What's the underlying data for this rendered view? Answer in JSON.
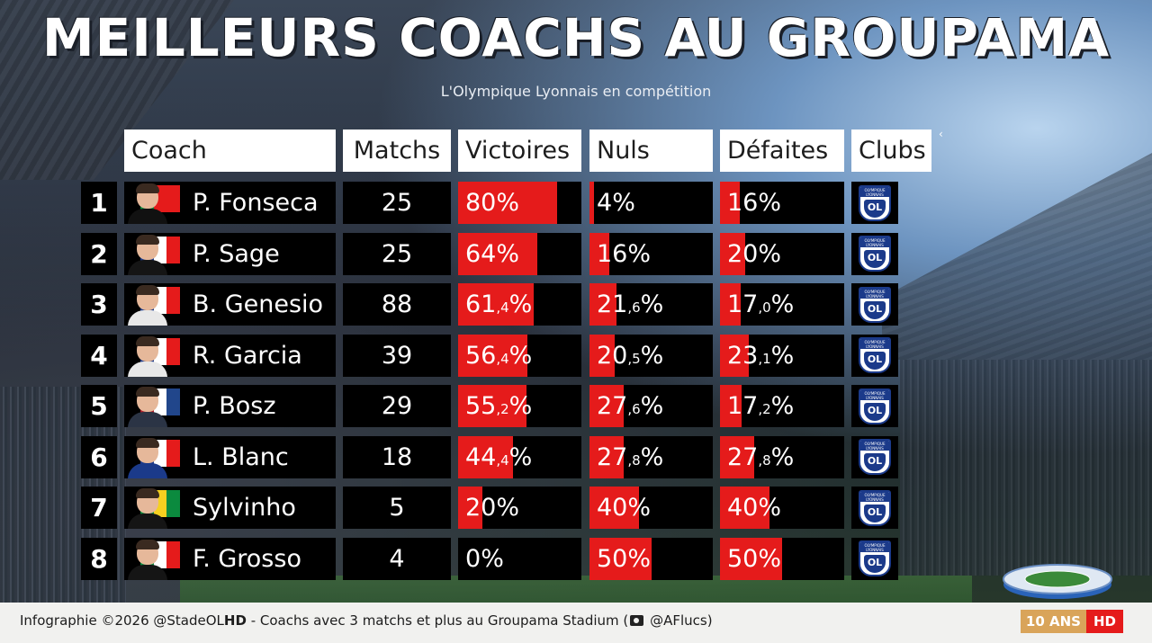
{
  "title": "MEILLEURS COACHS AU GROUPAMA",
  "subtitle": "L'Olympique Lyonnais en compétition",
  "columns": {
    "coach": "Coach",
    "matchs": "Matchs",
    "victoires": "Victoires",
    "nuls": "Nuls",
    "defaites": "Défaites",
    "clubs": "Clubs"
  },
  "header_caret": "‹",
  "rows": [
    {
      "rank": "1",
      "name": "P. Fonseca",
      "flag": [
        "#0b8a3e",
        "#e51b1b",
        "#e51b1b"
      ],
      "outfit": "#111111",
      "matchs": "25",
      "victoires": {
        "value": 80,
        "int": "80",
        "dec": "",
        "suffix": "%"
      },
      "nuls": {
        "value": 4,
        "int": "4",
        "dec": "",
        "suffix": "%"
      },
      "defaites": {
        "value": 16,
        "int": "16",
        "dec": "",
        "suffix": "%"
      },
      "club_logo": "olympique-lyonnais-logo"
    },
    {
      "rank": "2",
      "name": "P. Sage",
      "flag": [
        "#1b3a8a",
        "#ffffff",
        "#e51b1b"
      ],
      "outfit": "#151515",
      "matchs": "25",
      "victoires": {
        "value": 64,
        "int": "64",
        "dec": "",
        "suffix": "%"
      },
      "nuls": {
        "value": 16,
        "int": "16",
        "dec": "",
        "suffix": "%"
      },
      "defaites": {
        "value": 20,
        "int": "20",
        "dec": "",
        "suffix": "%"
      },
      "club_logo": "olympique-lyonnais-logo"
    },
    {
      "rank": "3",
      "name": "B. Genesio",
      "flag": [
        "#1b3a8a",
        "#ffffff",
        "#e51b1b"
      ],
      "outfit": "#e8e8e8",
      "matchs": "88",
      "victoires": {
        "value": 61.4,
        "int": "61",
        "dec": ",4",
        "suffix": "%"
      },
      "nuls": {
        "value": 21.6,
        "int": "21",
        "dec": ",6",
        "suffix": "%"
      },
      "defaites": {
        "value": 17.0,
        "int": "17",
        "dec": ",0",
        "suffix": "%"
      },
      "club_logo": "olympique-lyonnais-logo"
    },
    {
      "rank": "4",
      "name": "R. Garcia",
      "flag": [
        "#1b3a8a",
        "#ffffff",
        "#e51b1b"
      ],
      "outfit": "#e8e8e8",
      "matchs": "39",
      "victoires": {
        "value": 56.4,
        "int": "56",
        "dec": ",4",
        "suffix": "%"
      },
      "nuls": {
        "value": 20.5,
        "int": "20",
        "dec": ",5",
        "suffix": "%"
      },
      "defaites": {
        "value": 23.1,
        "int": "23",
        "dec": ",1",
        "suffix": "%"
      },
      "club_logo": "olympique-lyonnais-logo"
    },
    {
      "rank": "5",
      "name": "P. Bosz",
      "flag": [
        "#ae1c28",
        "#ffffff",
        "#21468b"
      ],
      "outfit": "#2b3445",
      "matchs": "29",
      "victoires": {
        "value": 55.2,
        "int": "55",
        "dec": ",2",
        "suffix": "%"
      },
      "nuls": {
        "value": 27.6,
        "int": "27",
        "dec": ",6",
        "suffix": "%"
      },
      "defaites": {
        "value": 17.2,
        "int": "17",
        "dec": ",2",
        "suffix": "%"
      },
      "club_logo": "olympique-lyonnais-logo"
    },
    {
      "rank": "6",
      "name": "L. Blanc",
      "flag": [
        "#1b3a8a",
        "#ffffff",
        "#e51b1b"
      ],
      "outfit": "#1b3a8a",
      "matchs": "18",
      "victoires": {
        "value": 44.4,
        "int": "44",
        "dec": ",4",
        "suffix": "%"
      },
      "nuls": {
        "value": 27.8,
        "int": "27",
        "dec": ",8",
        "suffix": "%"
      },
      "defaites": {
        "value": 27.8,
        "int": "27",
        "dec": ",8",
        "suffix": "%"
      },
      "club_logo": "olympique-lyonnais-logo"
    },
    {
      "rank": "7",
      "name": "Sylvinho",
      "flag": [
        "#0b8a3e",
        "#f5d020",
        "#0b8a3e"
      ],
      "outfit": "#151515",
      "matchs": "5",
      "victoires": {
        "value": 20,
        "int": "20",
        "dec": "",
        "suffix": "%"
      },
      "nuls": {
        "value": 40,
        "int": "40",
        "dec": "",
        "suffix": "%"
      },
      "defaites": {
        "value": 40,
        "int": "40",
        "dec": "",
        "suffix": "%"
      },
      "club_logo": "olympique-lyonnais-logo"
    },
    {
      "rank": "8",
      "name": "F. Grosso",
      "flag": [
        "#0b8a3e",
        "#ffffff",
        "#e51b1b"
      ],
      "outfit": "#151515",
      "matchs": "4",
      "victoires": {
        "value": 0,
        "int": "0",
        "dec": "",
        "suffix": "%"
      },
      "nuls": {
        "value": 50,
        "int": "50",
        "dec": "",
        "suffix": "%"
      },
      "defaites": {
        "value": 50,
        "int": "50",
        "dec": "",
        "suffix": "%"
      },
      "club_logo": "olympique-lyonnais-logo"
    }
  ],
  "club_logo_text": {
    "top1": "OLYMPIQUE",
    "top2": "LYONNAIS",
    "mark": "OL"
  },
  "footer": {
    "prefix": "Infographie ©2026 @StadeOL",
    "hd": "HD",
    "middle": " - Coachs avec 3 matchs et plus au Groupama Stadium (",
    "camera_icon": "camera-icon",
    "handle": " @AFlucs)"
  },
  "badge": {
    "left": "10 ANS",
    "right": "HD"
  },
  "colors": {
    "bar": "#e51b1b",
    "cell": "#000000",
    "header": "#ffffff",
    "ol_blue": "#1b3a8a"
  }
}
